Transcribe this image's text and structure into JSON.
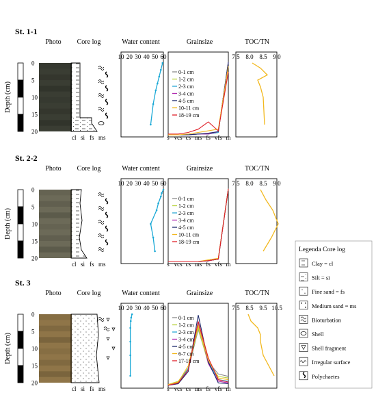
{
  "headers": {
    "photo": "Photo",
    "core_log": "Core log",
    "water": "Water content",
    "grainsize": "Grainsize",
    "toc": "TOC/TN"
  },
  "core_axis_labels": [
    "cl",
    "si",
    "fs",
    "ms"
  ],
  "grain_axis_labels": [
    "s",
    "vcs",
    "cs",
    "ms",
    "fs",
    "vfs",
    "m"
  ],
  "depth_axis": {
    "label": "Depth (cm)",
    "ticks": [
      "0",
      "5",
      "10",
      "15",
      "20"
    ]
  },
  "water_ticks": [
    "10",
    "20",
    "30",
    "40",
    "50",
    "60"
  ],
  "legend": {
    "title": "Legenda Core log",
    "items": [
      {
        "icon": "clay",
        "label": "Clay = cl"
      },
      {
        "icon": "silt",
        "label": "Silt = si"
      },
      {
        "icon": "fine-sand",
        "label": "Fine sand = fs"
      },
      {
        "icon": "medium-sand",
        "label": "Medium sand = ms"
      },
      {
        "icon": "bioturbation",
        "label": "Bioturbation"
      },
      {
        "icon": "shell",
        "label": "Shell"
      },
      {
        "icon": "shell-fragment",
        "label": "Shell fragment"
      },
      {
        "icon": "irregular-surface",
        "label": "Irregular surface"
      },
      {
        "icon": "polychaetes",
        "label": "Polychaetes"
      }
    ]
  },
  "colors": {
    "water": "#1ba9d6",
    "toc": "#f2b81e",
    "photo1": "#3a3d33",
    "photo2": "#6c6a58",
    "photo3": "#8f7548"
  },
  "stations": [
    {
      "name": "St. 1-1",
      "toc_ticks": [
        "7.5",
        "8.0",
        "8.5",
        "9.0"
      ],
      "toc_range": [
        7.5,
        9.0
      ],
      "water_profile": [
        [
          0,
          59
        ],
        [
          2,
          57
        ],
        [
          4,
          55
        ],
        [
          6,
          53
        ],
        [
          8,
          51
        ],
        [
          12,
          48
        ],
        [
          18,
          45
        ]
      ],
      "toc_profile": [
        [
          0,
          8.1
        ],
        [
          1.5,
          8.4
        ],
        [
          3.5,
          8.65
        ],
        [
          5,
          8.3
        ],
        [
          7,
          8.4
        ],
        [
          10,
          8.5
        ],
        [
          18,
          8.55
        ]
      ],
      "grain_legend": [
        "0-1 cm",
        "1-2 cm",
        "2-3 cm",
        "3-4 cm",
        "4-5 cm",
        "10-11 cm",
        "18-19 cm"
      ],
      "grain_series": [
        {
          "name": "0-1 cm",
          "color": "#8c8c8c",
          "values": [
            0,
            0,
            0,
            1,
            1,
            3,
            90
          ]
        },
        {
          "name": "1-2 cm",
          "color": "#b9d33c",
          "values": [
            0,
            0,
            0,
            1,
            1,
            3,
            90
          ]
        },
        {
          "name": "2-3 cm",
          "color": "#2aa7d6",
          "values": [
            0,
            0,
            0,
            1,
            1,
            3,
            90
          ]
        },
        {
          "name": "3-4 cm",
          "color": "#b02ab0",
          "values": [
            0,
            0,
            0,
            1,
            1,
            4,
            90
          ]
        },
        {
          "name": "4-5 cm",
          "color": "#1d2a6c",
          "values": [
            0,
            0,
            0,
            1,
            2,
            4,
            90
          ]
        },
        {
          "name": "10-11 cm",
          "color": "#f2b81e",
          "values": [
            0,
            0,
            1,
            3,
            5,
            7,
            85
          ]
        },
        {
          "name": "18-19 cm",
          "color": "#e0202a",
          "values": [
            1,
            1,
            3,
            7,
            16,
            5,
            78
          ]
        }
      ]
    },
    {
      "name": "St. 2-2",
      "toc_ticks": [
        "7.5",
        "8.0",
        "8.5",
        "9.0"
      ],
      "toc_range": [
        7.5,
        9.0
      ],
      "water_profile": [
        [
          0,
          60
        ],
        [
          1,
          58
        ],
        [
          2,
          57
        ],
        [
          4,
          54
        ],
        [
          6,
          52
        ],
        [
          10,
          45
        ],
        [
          14,
          48
        ],
        [
          18,
          50
        ]
      ],
      "toc_profile": [
        [
          0,
          8.4
        ],
        [
          3,
          8.6
        ],
        [
          6,
          8.85
        ],
        [
          10,
          9.05
        ],
        [
          14,
          8.8
        ],
        [
          18,
          8.5
        ]
      ],
      "grain_legend": [
        "0-1 cm",
        "1-2 cm",
        "2-3 cm",
        "3-4 cm",
        "4-5 cm",
        "10-11 cm",
        "18-19 cm"
      ],
      "grain_series": [
        {
          "name": "0-1 cm",
          "color": "#8c8c8c",
          "values": [
            0,
            0,
            0,
            0,
            1,
            3,
            90
          ]
        },
        {
          "name": "1-2 cm",
          "color": "#b9d33c",
          "values": [
            0,
            0,
            0,
            0,
            1,
            3,
            90
          ]
        },
        {
          "name": "2-3 cm",
          "color": "#2aa7d6",
          "values": [
            0,
            0,
            0,
            0,
            1,
            3,
            90
          ]
        },
        {
          "name": "3-4 cm",
          "color": "#b02ab0",
          "values": [
            0,
            0,
            0,
            0,
            1,
            3,
            90
          ]
        },
        {
          "name": "4-5 cm",
          "color": "#1d2a6c",
          "values": [
            0,
            0,
            0,
            0,
            1,
            3,
            90
          ]
        },
        {
          "name": "10-11 cm",
          "color": "#f2b81e",
          "values": [
            0,
            0,
            0,
            0,
            2,
            4,
            90
          ]
        },
        {
          "name": "18-19 cm",
          "color": "#e0202a",
          "values": [
            0,
            0,
            0,
            0,
            1,
            3,
            90
          ]
        }
      ]
    },
    {
      "name": "St. 3",
      "toc_ticks": [
        "7.5",
        "8.5",
        "9.5",
        "10.5"
      ],
      "toc_range": [
        7.5,
        10.5
      ],
      "water_profile": [
        [
          0,
          23
        ],
        [
          1,
          22
        ],
        [
          2,
          21.5
        ],
        [
          4,
          21
        ],
        [
          8,
          21
        ],
        [
          12,
          21
        ],
        [
          18,
          21
        ]
      ],
      "toc_profile": [
        [
          0,
          8.4
        ],
        [
          2,
          8.6
        ],
        [
          4,
          9.1
        ],
        [
          6,
          9.3
        ],
        [
          8,
          9.3
        ],
        [
          12,
          9.5
        ],
        [
          18,
          10.3
        ]
      ],
      "grain_legend": [
        "0-1 cm",
        "1-2 cm",
        "2-3 cm",
        "3-4 cm",
        "4-5 cm",
        "6-7 cm",
        "17-18 cm"
      ],
      "grain_series": [
        {
          "name": "0-1 cm",
          "color": "#8c8c8c",
          "values": [
            2,
            5,
            20,
            70,
            30,
            15,
            12
          ]
        },
        {
          "name": "1-2 cm",
          "color": "#b9d33c",
          "values": [
            2,
            6,
            22,
            72,
            28,
            12,
            10
          ]
        },
        {
          "name": "2-3 cm",
          "color": "#2aa7d6",
          "values": [
            1,
            4,
            22,
            78,
            30,
            8,
            6
          ]
        },
        {
          "name": "3-4 cm",
          "color": "#b02ab0",
          "values": [
            1,
            3,
            20,
            80,
            28,
            6,
            4
          ]
        },
        {
          "name": "4-5 cm",
          "color": "#1d2a6c",
          "values": [
            1,
            3,
            18,
            88,
            30,
            4,
            3
          ]
        },
        {
          "name": "6-7 cm",
          "color": "#f2b81e",
          "values": [
            2,
            5,
            25,
            75,
            32,
            10,
            8
          ]
        },
        {
          "name": "17-18 cm",
          "color": "#e0202a",
          "values": [
            1,
            4,
            20,
            80,
            35,
            8,
            5
          ]
        }
      ]
    }
  ]
}
